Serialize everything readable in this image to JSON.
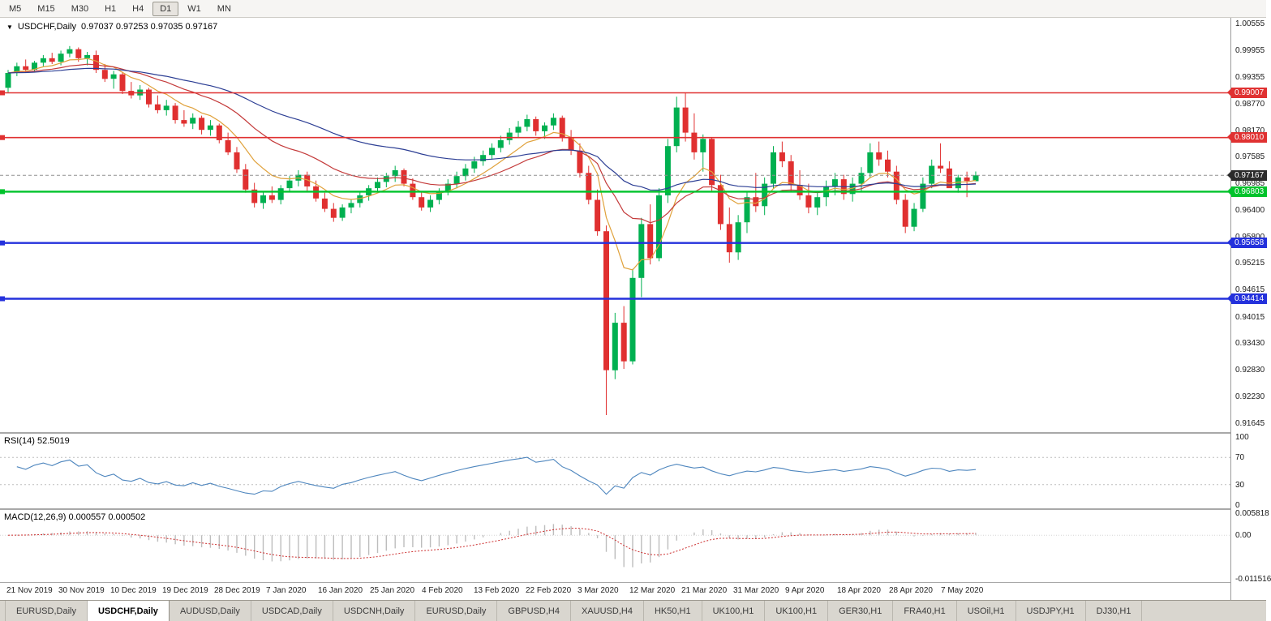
{
  "toolbar": {
    "timeframes": [
      "M5",
      "M15",
      "M30",
      "H1",
      "H4",
      "D1",
      "W1",
      "MN"
    ],
    "active_timeframe": "D1"
  },
  "chart_header": {
    "symbol": "USDCHF,Daily",
    "ohlc_text": "0.97037 0.97253 0.97035 0.97167"
  },
  "indicators": {
    "rsi_label": "RSI(14) 52.5019",
    "macd_label": "MACD(12,26,9) 0.000557 0.000502"
  },
  "tabs": {
    "active_index": 1,
    "items": [
      "EURUSD,Daily",
      "USDCHF,Daily",
      "AUDUSD,Daily",
      "USDCAD,Daily",
      "USDCNH,Daily",
      "EURUSD,Daily",
      "GBPUSD,H4",
      "XAUUSD,H4",
      "HK50,H1",
      "UK100,H1",
      "UK100,H1",
      "GER30,H1",
      "FRA40,H1",
      "USOil,H1",
      "USDJPY,H1",
      "DJ30,H1"
    ]
  },
  "chart_data": {
    "type": "candlestick",
    "symbol": "USDCHF",
    "timeframe": "Daily",
    "current_bar": {
      "open": 0.97037,
      "high": 0.97253,
      "low": 0.97035,
      "close": 0.97167
    },
    "price_range": [
      0.9144,
      1.0068
    ],
    "y_axis_labels": [
      "1.00555",
      "0.99955",
      "0.99355",
      "0.98770",
      "0.98170",
      "0.97585",
      "0.96985",
      "0.96400",
      "0.95800",
      "0.95215",
      "0.94615",
      "0.94015",
      "0.93430",
      "0.92830",
      "0.92230",
      "0.91645"
    ],
    "x_axis_labels": [
      "21 Nov 2019",
      "30 Nov 2019",
      "10 Dec 2019",
      "19 Dec 2019",
      "28 Dec 2019",
      "7 Jan 2020",
      "16 Jan 2020",
      "25 Jan 2020",
      "4 Feb 2020",
      "13 Feb 2020",
      "22 Feb 2020",
      "3 Mar 2020",
      "12 Mar 2020",
      "21 Mar 2020",
      "31 Mar 2020",
      "9 Apr 2020",
      "18 Apr 2020",
      "28 Apr 2020",
      "7 May 2020"
    ],
    "colors": {
      "up": "#00B050",
      "down": "#E03030",
      "bid_line": "#909090"
    },
    "h_lines": [
      {
        "value": 0.99007,
        "label": "0.99007",
        "color": "#E03131",
        "width": 1.6
      },
      {
        "value": 0.9801,
        "label": "0.98010",
        "color": "#E03131",
        "width": 1.6
      },
      {
        "value": 0.96803,
        "label": "0.96803",
        "color": "#00C32B",
        "width": 2.4
      },
      {
        "value": 0.95658,
        "label": "0.95658",
        "color": "#2431DC",
        "width": 2.4
      },
      {
        "value": 0.94414,
        "label": "0.94414",
        "color": "#2431DC",
        "width": 2.4
      }
    ],
    "price_line": {
      "value": 0.97167,
      "label": "0.97167",
      "color": "#2b2b2b"
    },
    "moving_averages": [
      {
        "period": 8,
        "color": "#E0A23C"
      },
      {
        "period": 20,
        "color": "#C43B3B"
      },
      {
        "period": 45,
        "color": "#2C3E94"
      }
    ],
    "rsi": {
      "period": 14,
      "value": 52.5019,
      "levels": [
        70,
        30
      ],
      "axis_labels": [
        "100",
        "70",
        "30",
        "0"
      ],
      "range": [
        0,
        100
      ],
      "color": "#4E86BE"
    },
    "macd": {
      "fast": 12,
      "slow": 26,
      "signal": 9,
      "values": [
        0.000557,
        0.000502
      ],
      "axis_labels": [
        "0.005818",
        "0.00",
        "-0.011516"
      ],
      "range": [
        -0.011516,
        0.005818
      ],
      "histogram_color": "#BDBDBD",
      "signal_color": "#CC2E2E"
    },
    "candles": [
      [
        0.9912,
        0.9952,
        0.9902,
        0.9945
      ],
      [
        0.9945,
        0.9968,
        0.9938,
        0.996
      ],
      [
        0.996,
        0.9975,
        0.9945,
        0.9952
      ],
      [
        0.9952,
        0.9972,
        0.9948,
        0.9968
      ],
      [
        0.9968,
        0.9985,
        0.996,
        0.9978
      ],
      [
        0.9978,
        0.999,
        0.9965,
        0.997
      ],
      [
        0.997,
        0.9995,
        0.9962,
        0.9988
      ],
      [
        0.9988,
        1.0005,
        0.998,
        0.9998
      ],
      [
        0.9998,
        1.0002,
        0.997,
        0.9978
      ],
      [
        0.9978,
        0.9992,
        0.9962,
        0.9985
      ],
      [
        0.9985,
        0.9995,
        0.9945,
        0.9952
      ],
      [
        0.9952,
        0.9965,
        0.9925,
        0.9932
      ],
      [
        0.9932,
        0.995,
        0.991,
        0.9942
      ],
      [
        0.9942,
        0.9948,
        0.9898,
        0.9905
      ],
      [
        0.9905,
        0.9925,
        0.9888,
        0.9895
      ],
      [
        0.9895,
        0.9918,
        0.9885,
        0.9908
      ],
      [
        0.9908,
        0.9912,
        0.9868,
        0.9875
      ],
      [
        0.9875,
        0.9895,
        0.9855,
        0.9862
      ],
      [
        0.9862,
        0.9885,
        0.985,
        0.9872
      ],
      [
        0.9872,
        0.9878,
        0.9832,
        0.984
      ],
      [
        0.984,
        0.9862,
        0.9825,
        0.9832
      ],
      [
        0.9832,
        0.9855,
        0.982,
        0.9845
      ],
      [
        0.9845,
        0.985,
        0.9808,
        0.9818
      ],
      [
        0.9818,
        0.984,
        0.9805,
        0.9828
      ],
      [
        0.9828,
        0.9832,
        0.9788,
        0.9795
      ],
      [
        0.9795,
        0.9812,
        0.9762,
        0.9768
      ],
      [
        0.9768,
        0.978,
        0.9722,
        0.973
      ],
      [
        0.973,
        0.9742,
        0.9678,
        0.9685
      ],
      [
        0.9685,
        0.97,
        0.9645,
        0.9655
      ],
      [
        0.9655,
        0.968,
        0.9642,
        0.9672
      ],
      [
        0.9672,
        0.9692,
        0.9655,
        0.9662
      ],
      [
        0.9662,
        0.9695,
        0.9652,
        0.9688
      ],
      [
        0.9688,
        0.9715,
        0.968,
        0.9705
      ],
      [
        0.9705,
        0.9728,
        0.9692,
        0.9718
      ],
      [
        0.9718,
        0.9725,
        0.9682,
        0.9692
      ],
      [
        0.9692,
        0.9705,
        0.9658,
        0.9665
      ],
      [
        0.9665,
        0.9678,
        0.9635,
        0.9642
      ],
      [
        0.9642,
        0.9655,
        0.9613,
        0.9622
      ],
      [
        0.9622,
        0.9652,
        0.9615,
        0.9645
      ],
      [
        0.9645,
        0.9662,
        0.9632,
        0.9655
      ],
      [
        0.9655,
        0.968,
        0.9645,
        0.9672
      ],
      [
        0.9672,
        0.9695,
        0.966,
        0.9688
      ],
      [
        0.9688,
        0.9712,
        0.9678,
        0.9702
      ],
      [
        0.9702,
        0.9722,
        0.969,
        0.9715
      ],
      [
        0.9715,
        0.9738,
        0.9702,
        0.9728
      ],
      [
        0.9728,
        0.9732,
        0.9692,
        0.9698
      ],
      [
        0.9698,
        0.971,
        0.9662,
        0.9668
      ],
      [
        0.9668,
        0.9682,
        0.9638,
        0.9645
      ],
      [
        0.9645,
        0.9672,
        0.9635,
        0.9662
      ],
      [
        0.9662,
        0.9688,
        0.9652,
        0.968
      ],
      [
        0.968,
        0.9708,
        0.9672,
        0.9698
      ],
      [
        0.9698,
        0.9725,
        0.9688,
        0.9715
      ],
      [
        0.9715,
        0.9742,
        0.9705,
        0.9732
      ],
      [
        0.9732,
        0.9758,
        0.9722,
        0.9748
      ],
      [
        0.9748,
        0.9772,
        0.9738,
        0.9762
      ],
      [
        0.9762,
        0.9788,
        0.9752,
        0.9778
      ],
      [
        0.9778,
        0.9805,
        0.9768,
        0.9795
      ],
      [
        0.9795,
        0.9822,
        0.9785,
        0.9812
      ],
      [
        0.9812,
        0.9838,
        0.98,
        0.9825
      ],
      [
        0.9825,
        0.9852,
        0.9815,
        0.9842
      ],
      [
        0.9842,
        0.9848,
        0.9805,
        0.9815
      ],
      [
        0.9815,
        0.9835,
        0.9798,
        0.9828
      ],
      [
        0.9828,
        0.9855,
        0.9818,
        0.9845
      ],
      [
        0.9845,
        0.985,
        0.9792,
        0.98
      ],
      [
        0.98,
        0.9818,
        0.9762,
        0.9772
      ],
      [
        0.9772,
        0.9788,
        0.9712,
        0.9722
      ],
      [
        0.9722,
        0.9738,
        0.9652,
        0.9662
      ],
      [
        0.9662,
        0.9685,
        0.9582,
        0.9592
      ],
      [
        0.9592,
        0.9605,
        0.9182,
        0.9282
      ],
      [
        0.9282,
        0.941,
        0.9262,
        0.9388
      ],
      [
        0.9388,
        0.9425,
        0.9285,
        0.9302
      ],
      [
        0.9302,
        0.9508,
        0.9295,
        0.9488
      ],
      [
        0.9488,
        0.9622,
        0.9445,
        0.9608
      ],
      [
        0.9608,
        0.9652,
        0.9518,
        0.9532
      ],
      [
        0.9532,
        0.9688,
        0.9525,
        0.9672
      ],
      [
        0.9672,
        0.9798,
        0.9655,
        0.9782
      ],
      [
        0.9782,
        0.9892,
        0.9768,
        0.9868
      ],
      [
        0.9868,
        0.9901,
        0.9792,
        0.9812
      ],
      [
        0.9812,
        0.9855,
        0.9752,
        0.9768
      ],
      [
        0.9768,
        0.9808,
        0.9725,
        0.9798
      ],
      [
        0.9798,
        0.9802,
        0.9682,
        0.9695
      ],
      [
        0.9695,
        0.9718,
        0.9595,
        0.9608
      ],
      [
        0.9608,
        0.9645,
        0.9522,
        0.9545
      ],
      [
        0.9545,
        0.9628,
        0.9528,
        0.9612
      ],
      [
        0.9612,
        0.9682,
        0.9588,
        0.9668
      ],
      [
        0.9668,
        0.9722,
        0.9635,
        0.9648
      ],
      [
        0.9648,
        0.9712,
        0.9628,
        0.9698
      ],
      [
        0.9698,
        0.9782,
        0.9688,
        0.9768
      ],
      [
        0.9768,
        0.9792,
        0.9735,
        0.9748
      ],
      [
        0.9748,
        0.9762,
        0.9682,
        0.9695
      ],
      [
        0.9695,
        0.9728,
        0.9662,
        0.9672
      ],
      [
        0.9672,
        0.9698,
        0.9632,
        0.9645
      ],
      [
        0.9645,
        0.9682,
        0.9628,
        0.9668
      ],
      [
        0.9668,
        0.9705,
        0.9648,
        0.9692
      ],
      [
        0.9692,
        0.9722,
        0.9672,
        0.9708
      ],
      [
        0.9708,
        0.9718,
        0.9662,
        0.9675
      ],
      [
        0.9675,
        0.9712,
        0.9658,
        0.9698
      ],
      [
        0.9698,
        0.9735,
        0.9682,
        0.9722
      ],
      [
        0.9722,
        0.9788,
        0.9712,
        0.9768
      ],
      [
        0.9768,
        0.9792,
        0.9738,
        0.9752
      ],
      [
        0.9752,
        0.9772,
        0.9712,
        0.9725
      ],
      [
        0.9725,
        0.9738,
        0.9652,
        0.9662
      ],
      [
        0.9662,
        0.9675,
        0.9588,
        0.9602
      ],
      [
        0.9602,
        0.9655,
        0.9592,
        0.9642
      ],
      [
        0.9642,
        0.9712,
        0.9635,
        0.9698
      ],
      [
        0.9698,
        0.9752,
        0.9688,
        0.9738
      ],
      [
        0.9738,
        0.9788,
        0.9722,
        0.9732
      ],
      [
        0.9732,
        0.9748,
        0.9692,
        0.9688
      ],
      [
        0.9688,
        0.9718,
        0.9678,
        0.9712
      ],
      [
        0.9712,
        0.9725,
        0.9668,
        0.9704
      ],
      [
        0.97037,
        0.97253,
        0.97035,
        0.97167
      ]
    ]
  }
}
